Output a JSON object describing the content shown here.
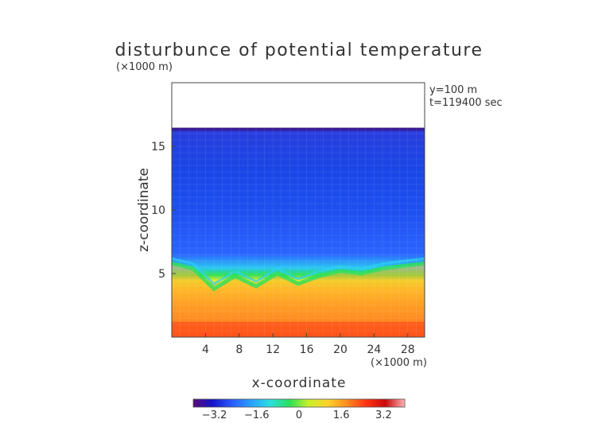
{
  "chart_data": {
    "type": "heatmap",
    "title": "disturbunce of potential temperature",
    "xlabel": "x-coordinate",
    "ylabel": "z-coordinate",
    "x_unit": "(×1000 m)",
    "z_unit": "(×1000 m)",
    "annotations": [
      "y=100 m",
      "t=119400 sec"
    ],
    "xlim": [
      0,
      30
    ],
    "zlim": [
      0,
      20
    ],
    "x_ticks": [
      4,
      8,
      12,
      16,
      20,
      24,
      28
    ],
    "z_ticks": [
      5,
      10,
      15
    ],
    "colorbar": {
      "range": [
        -4,
        4
      ],
      "ticks": [
        "−3.2",
        "−1.6",
        "0",
        "1.6",
        "3.2"
      ],
      "colors": [
        "#5a0a7a",
        "#1414c8",
        "#2a5aff",
        "#2aa0ff",
        "#2ae0e0",
        "#2ae05a",
        "#c8f02a",
        "#ffd22a",
        "#ff8c1e",
        "#ff3214",
        "#c80a0a",
        "#ffb4b4"
      ]
    },
    "field_description_values": {
      "top_of_data_z": 16.4,
      "upper_layer_value": -2.4,
      "lower_layer_value": 2.4,
      "interface_z_approx": [
        5.8,
        5.4,
        3.8,
        4.8,
        4.0,
        5.0,
        4.2,
        4.8,
        5.2,
        5.0,
        5.4,
        5.6,
        5.8
      ]
    }
  }
}
